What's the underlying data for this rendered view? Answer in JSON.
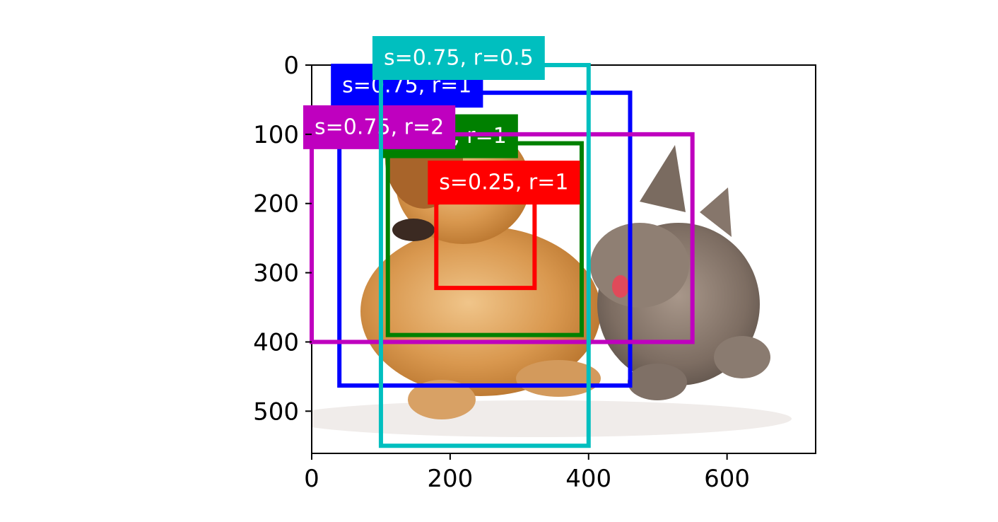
{
  "chart_data": {
    "type": "image_with_bounding_boxes",
    "title": "",
    "xlabel": "",
    "ylabel": "",
    "image": {
      "description": "puppy and kitten on white background",
      "width": 728,
      "height": 561
    },
    "xlim": [
      0,
      728
    ],
    "ylim": [
      561,
      0
    ],
    "xticks": [
      0,
      200,
      400,
      600
    ],
    "yticks": [
      0,
      100,
      200,
      300,
      400,
      500
    ],
    "xtick_labels": [
      "0",
      "200",
      "400",
      "600"
    ],
    "ytick_labels": [
      "0",
      "100",
      "200",
      "300",
      "400",
      "500"
    ],
    "boxes": [
      {
        "label": "s=0.75, r=1",
        "color": "#0000ff",
        "x1": 40,
        "y1": 40,
        "x2": 460,
        "y2": 463
      },
      {
        "label": "s=0.5, r=1",
        "color": "#008000",
        "x1": 110,
        "y1": 113,
        "x2": 390,
        "y2": 390
      },
      {
        "label": "s=0.25, r=1",
        "color": "#ff0000",
        "x1": 180,
        "y1": 180,
        "x2": 322,
        "y2": 322
      },
      {
        "label": "s=0.75, r=2",
        "color": "#bf00bf",
        "x1": 0,
        "y1": 100,
        "x2": 550,
        "y2": 400
      },
      {
        "label": "s=0.75, r=0.5",
        "color": "#00bfbf",
        "x1": 100,
        "y1": 0,
        "x2": 400,
        "y2": 550
      }
    ]
  }
}
